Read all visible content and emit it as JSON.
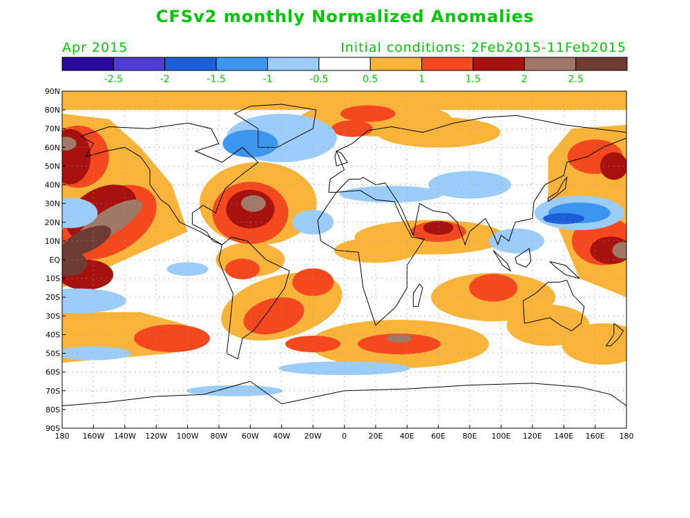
{
  "title": "CFSv2 monthly Normalized Anomalies",
  "month_label": "Apr 2015",
  "init_label": "Initial conditions: 2Feb2015-11Feb2015",
  "text_color": "#00c800",
  "colorbar": {
    "colors": [
      "#2a0a9e",
      "#4f3cd2",
      "#1a5fd8",
      "#3c96f0",
      "#9ccdfa",
      "#ffffff",
      "#fbb43a",
      "#f5481e",
      "#a8120e",
      "#a07868",
      "#6e3c32"
    ],
    "labels": [
      "-2.5",
      "-2",
      "-1.5",
      "-1",
      "-0.5",
      "0.5",
      "1",
      "1.5",
      "2",
      "2.5"
    ]
  },
  "map": {
    "lat_labels": [
      "90N",
      "80N",
      "70N",
      "60N",
      "50N",
      "40N",
      "30N",
      "20N",
      "10N",
      "EQ",
      "10S",
      "20S",
      "30S",
      "40S",
      "50S",
      "60S",
      "70S",
      "80S",
      "90S"
    ],
    "lon_labels": [
      "180",
      "160W",
      "140W",
      "120W",
      "100W",
      "80W",
      "60W",
      "40W",
      "20W",
      "0",
      "20E",
      "40E",
      "60E",
      "80E",
      "100E",
      "120E",
      "140E",
      "160E",
      "180"
    ]
  }
}
